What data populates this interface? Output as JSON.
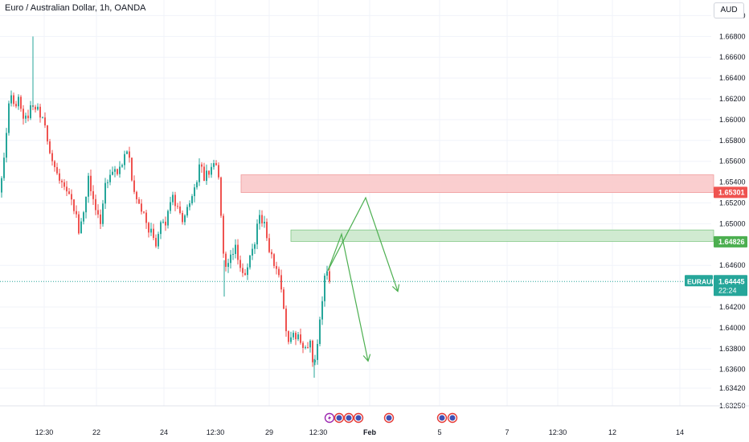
{
  "header": {
    "title": "Euro / Australian Dollar, 1h, OANDA",
    "currency": "AUD"
  },
  "colors": {
    "up": "#26a69a",
    "down": "#ef5350",
    "zone_red": "#f9c5c7",
    "zone_green": "#c8e6c9",
    "arrow": "#4caf50",
    "price_line": "#26a69a",
    "grid": "#f0f3fa"
  },
  "events": [
    "lightning-event-icon",
    "flag-event-icon",
    "flag-event-icon",
    "flag-event-icon",
    "flag-event-icon",
    "flag-event-icon",
    "flag-event-icon"
  ],
  "chart_data": {
    "type": "candlestick",
    "symbol": "EURAUD",
    "y_ticks": [
      "1.67000",
      "1.66800",
      "1.66600",
      "1.66400",
      "1.66200",
      "1.66000",
      "1.65800",
      "1.65600",
      "1.65400",
      "1.65200",
      "1.65000",
      "1.64600",
      "1.64200",
      "1.64000",
      "1.63800",
      "1.63600",
      "1.63420",
      "1.63250"
    ],
    "x_ticks": [
      "12:30",
      "22",
      "24",
      "12:30",
      "29",
      "12:30",
      "Feb",
      "5",
      "7",
      "12:30",
      "12",
      "14"
    ],
    "ylim": [
      1.6325,
      1.6715
    ],
    "price_labels": {
      "resistance": "1.65301",
      "support": "1.64826",
      "current": "1.64445",
      "symbol": "EURAUD",
      "countdown": "22:24"
    },
    "zones": [
      {
        "name": "resistance-zone",
        "top": 1.6547,
        "bottom": 1.653
      },
      {
        "name": "support-zone",
        "top": 1.6494,
        "bottom": 1.6483
      }
    ],
    "current_price": 1.64445,
    "close_path": [
      {
        "t": 0,
        "p": 1.653
      },
      {
        "t": 8,
        "p": 1.66
      },
      {
        "t": 12,
        "p": 1.662
      },
      {
        "t": 16,
        "p": 1.661
      },
      {
        "t": 22,
        "p": 1.662
      },
      {
        "t": 30,
        "p": 1.66
      },
      {
        "t": 38,
        "p": 1.661
      },
      {
        "t": 46,
        "p": 1.6615
      },
      {
        "t": 55,
        "p": 1.659
      },
      {
        "t": 62,
        "p": 1.657
      },
      {
        "t": 70,
        "p": 1.655
      },
      {
        "t": 80,
        "p": 1.654
      },
      {
        "t": 90,
        "p": 1.652
      },
      {
        "t": 97,
        "p": 1.6495
      },
      {
        "t": 103,
        "p": 1.6515
      },
      {
        "t": 110,
        "p": 1.6545
      },
      {
        "t": 116,
        "p": 1.652
      },
      {
        "t": 123,
        "p": 1.65
      },
      {
        "t": 130,
        "p": 1.654
      },
      {
        "t": 138,
        "p": 1.6555
      },
      {
        "t": 145,
        "p": 1.6545
      },
      {
        "t": 152,
        "p": 1.6565
      },
      {
        "t": 158,
        "p": 1.657
      },
      {
        "t": 165,
        "p": 1.653
      },
      {
        "t": 172,
        "p": 1.6515
      },
      {
        "t": 178,
        "p": 1.6505
      },
      {
        "t": 186,
        "p": 1.6495
      },
      {
        "t": 192,
        "p": 1.648
      },
      {
        "t": 200,
        "p": 1.6505
      },
      {
        "t": 206,
        "p": 1.6495
      },
      {
        "t": 212,
        "p": 1.653
      },
      {
        "t": 218,
        "p": 1.652
      },
      {
        "t": 224,
        "p": 1.6505
      },
      {
        "t": 230,
        "p": 1.651
      },
      {
        "t": 236,
        "p": 1.652
      },
      {
        "t": 242,
        "p": 1.6535
      },
      {
        "t": 248,
        "p": 1.6555
      },
      {
        "t": 254,
        "p": 1.6545
      },
      {
        "t": 260,
        "p": 1.655
      },
      {
        "t": 266,
        "p": 1.656
      },
      {
        "t": 272,
        "p": 1.6545
      },
      {
        "t": 276,
        "p": 1.647
      },
      {
        "t": 280,
        "p": 1.646
      },
      {
        "t": 286,
        "p": 1.647
      },
      {
        "t": 292,
        "p": 1.6475
      },
      {
        "t": 298,
        "p": 1.646
      },
      {
        "t": 304,
        "p": 1.645
      },
      {
        "t": 310,
        "p": 1.647
      },
      {
        "t": 316,
        "p": 1.6485
      },
      {
        "t": 322,
        "p": 1.6505
      },
      {
        "t": 328,
        "p": 1.65
      },
      {
        "t": 334,
        "p": 1.6475
      },
      {
        "t": 340,
        "p": 1.6455
      },
      {
        "t": 346,
        "p": 1.645
      },
      {
        "t": 350,
        "p": 1.643
      },
      {
        "t": 354,
        "p": 1.64
      },
      {
        "t": 360,
        "p": 1.6385
      },
      {
        "t": 366,
        "p": 1.6395
      },
      {
        "t": 372,
        "p": 1.6385
      },
      {
        "t": 378,
        "p": 1.638
      },
      {
        "t": 384,
        "p": 1.639
      },
      {
        "t": 388,
        "p": 1.6365
      },
      {
        "t": 392,
        "p": 1.6375
      },
      {
        "t": 396,
        "p": 1.64
      },
      {
        "t": 400,
        "p": 1.643
      },
      {
        "t": 404,
        "p": 1.6455
      },
      {
        "t": 408,
        "p": 1.6465
      },
      {
        "t": 411,
        "p": 1.64445
      }
    ],
    "spikes": [
      {
        "t": 40,
        "high": 1.668
      },
      {
        "t": 278,
        "low": 1.643
      },
      {
        "t": 390,
        "low": 1.6352
      }
    ],
    "arrows": [
      {
        "points": [
          {
            "t": 408,
            "p": 1.6455
          },
          {
            "t": 455,
            "p": 1.6525
          },
          {
            "t": 495,
            "p": 1.6435
          }
        ]
      },
      {
        "points": [
          {
            "t": 408,
            "p": 1.6455
          },
          {
            "t": 425,
            "p": 1.649
          },
          {
            "t": 458,
            "p": 1.6368
          }
        ]
      }
    ]
  }
}
